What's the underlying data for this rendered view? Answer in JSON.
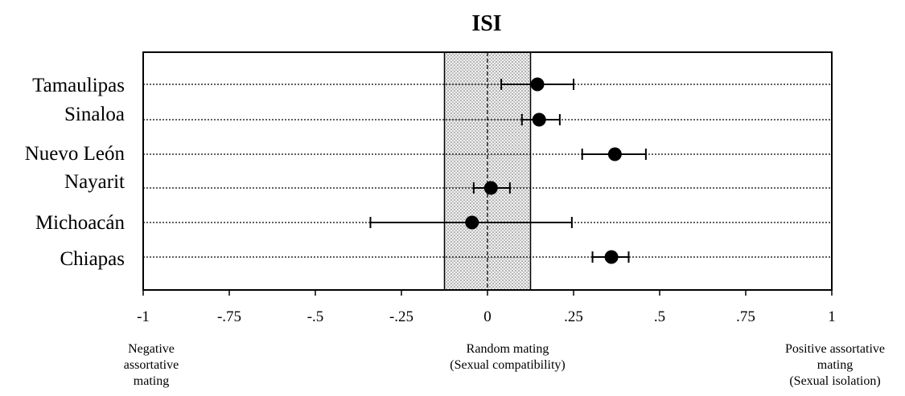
{
  "chart_data": {
    "type": "scatter",
    "title": "ISI",
    "xlim": [
      -1,
      1
    ],
    "x_ticks": [
      -1,
      -0.75,
      -0.5,
      -0.25,
      0,
      0.25,
      0.5,
      0.75,
      1
    ],
    "x_tick_labels": [
      "-1",
      "-.75",
      "-.5",
      "-.25",
      "0",
      ".25",
      ".5",
      ".75",
      "1"
    ],
    "random_mating_band": [
      -0.125,
      0.125
    ],
    "categories": [
      "Tamaulipas",
      "Sinaloa",
      "Nuevo León",
      "Nayarit",
      "Michoacán",
      "Chiapas"
    ],
    "values": [
      0.145,
      0.15,
      0.37,
      0.01,
      -0.045,
      0.36
    ],
    "error_low": [
      0.04,
      0.1,
      0.275,
      -0.04,
      -0.34,
      0.305
    ],
    "error_high": [
      0.25,
      0.21,
      0.46,
      0.065,
      0.245,
      0.41
    ],
    "annotations": {
      "left": [
        "Negative",
        "assortative",
        "mating"
      ],
      "center": [
        "Random mating",
        "(Sexual compatibility)"
      ],
      "right": [
        "Positive assortative",
        "mating",
        "(Sexual isolation)"
      ]
    },
    "grid": "dotted horizontal lines per category",
    "legend": "none"
  }
}
